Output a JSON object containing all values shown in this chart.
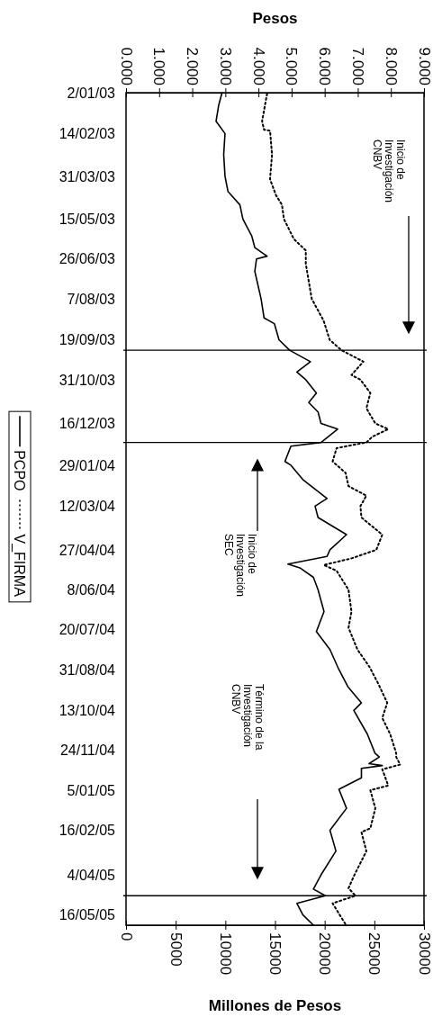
{
  "chart_data": {
    "type": "line",
    "orientation": "horizontal",
    "xlabel": "Millones de Pesos",
    "x2label": "Pesos",
    "ylim": [
      "2005-05-27",
      "2003-01-02"
    ],
    "yticks": [
      {
        "value": "2003-01-02",
        "label": "2/01/03"
      },
      {
        "value": "2003-02-14",
        "label": "14/02/03"
      },
      {
        "value": "2003-03-31",
        "label": "31/03/03"
      },
      {
        "value": "2003-05-15",
        "label": "15/05/03"
      },
      {
        "value": "2003-06-26",
        "label": "26/06/03"
      },
      {
        "value": "2003-08-07",
        "label": "7/08/03"
      },
      {
        "value": "2003-09-19",
        "label": "19/09/03"
      },
      {
        "value": "2003-10-31",
        "label": "31/10/03"
      },
      {
        "value": "2003-12-16",
        "label": "16/12/03"
      },
      {
        "value": "2004-01-29",
        "label": "29/01/04"
      },
      {
        "value": "2004-03-12",
        "label": "12/03/04"
      },
      {
        "value": "2004-04-27",
        "label": "27/04/04"
      },
      {
        "value": "2004-06-08",
        "label": "8/06/04"
      },
      {
        "value": "2004-07-20",
        "label": "20/07/04"
      },
      {
        "value": "2004-08-31",
        "label": "31/08/04"
      },
      {
        "value": "2004-10-13",
        "label": "13/10/04"
      },
      {
        "value": "2004-11-24",
        "label": "24/11/04"
      },
      {
        "value": "2005-01-05",
        "label": "5/01/05"
      },
      {
        "value": "2005-02-16",
        "label": "16/02/05"
      },
      {
        "value": "2005-04-04",
        "label": "4/04/05"
      },
      {
        "value": "2005-05-16",
        "label": "16/05/05"
      }
    ],
    "x2lim": [
      0,
      9
    ],
    "x2ticks": [
      {
        "value": 0,
        "label": "0.000"
      },
      {
        "value": 1,
        "label": "1.000"
      },
      {
        "value": 2,
        "label": "2.000"
      },
      {
        "value": 3,
        "label": "3.000"
      },
      {
        "value": 4,
        "label": "4.000"
      },
      {
        "value": 5,
        "label": "5.000"
      },
      {
        "value": 6,
        "label": "6.000"
      },
      {
        "value": 7,
        "label": "7.000"
      },
      {
        "value": 8,
        "label": "8.000"
      },
      {
        "value": 9,
        "label": "9.000"
      }
    ],
    "xlim": [
      0,
      30000
    ],
    "xticks": [
      0,
      5000,
      10000,
      15000,
      20000,
      25000,
      30000
    ],
    "legend": "left",
    "grid": false,
    "marker": "none",
    "series": [
      {
        "name": "PCPO",
        "color": "#000000",
        "line_style": "solid",
        "axis": "x2",
        "x": [
          "2003-01-02",
          "2003-01-15",
          "2003-02-01",
          "2003-02-14",
          "2003-03-08",
          "2003-03-31",
          "2003-04-16",
          "2003-04-30",
          "2003-05-15",
          "2003-06-02",
          "2003-06-14",
          "2003-06-23",
          "2003-06-26",
          "2003-07-09",
          "2003-08-07",
          "2003-08-27",
          "2003-09-02",
          "2003-09-19",
          "2003-09-30",
          "2003-10-12",
          "2003-10-23",
          "2003-10-31",
          "2003-11-14",
          "2003-11-24",
          "2003-12-04",
          "2003-12-16",
          "2003-12-22",
          "2004-01-05",
          "2004-01-09",
          "2004-01-25",
          "2004-01-29",
          "2004-02-13",
          "2004-03-04",
          "2004-03-12",
          "2004-03-24",
          "2004-04-11",
          "2004-04-27",
          "2004-05-04",
          "2004-05-12",
          "2004-05-16",
          "2004-05-26",
          "2004-06-08",
          "2004-07-01",
          "2004-07-22",
          "2004-08-10",
          "2004-08-31",
          "2004-09-18",
          "2004-10-05",
          "2004-10-13",
          "2004-11-07",
          "2004-11-27",
          "2004-12-01",
          "2004-12-08",
          "2004-12-10",
          "2004-12-13",
          "2004-12-23",
          "2005-01-04",
          "2005-01-24",
          "2005-02-16",
          "2005-03-10",
          "2005-04-04",
          "2005-04-19",
          "2005-04-26",
          "2005-05-04",
          "2005-05-16",
          "2005-05-27"
        ],
        "values": [
          2.9,
          2.8,
          2.72,
          2.99,
          2.95,
          2.99,
          3.08,
          3.44,
          3.53,
          3.8,
          3.89,
          4.26,
          3.94,
          3.89,
          4.08,
          4.17,
          4.48,
          4.62,
          4.94,
          5.57,
          5.16,
          5.43,
          5.75,
          5.52,
          5.8,
          5.89,
          6.39,
          5.89,
          4.98,
          4.8,
          4.98,
          5.34,
          6.07,
          5.71,
          5.8,
          6.66,
          6.16,
          6.07,
          4.89,
          5.25,
          5.66,
          5.8,
          5.98,
          5.75,
          6.16,
          6.43,
          6.7,
          7.11,
          6.88,
          7.29,
          7.52,
          7.65,
          7.34,
          7.74,
          7.11,
          7.11,
          6.43,
          6.66,
          6.16,
          6.34,
          5.89,
          5.66,
          6.02,
          5.16,
          5.34,
          5.66
        ]
      },
      {
        "name": "V_FIRMA",
        "color": "#000000",
        "line_style": "dotted",
        "x": [
          "2003-01-03",
          "2003-02-01",
          "2003-02-10",
          "2003-02-11",
          "2003-03-08",
          "2003-04-03",
          "2003-04-20",
          "2003-04-30",
          "2003-05-15",
          "2003-06-05",
          "2003-06-17",
          "2003-07-01",
          "2003-08-07",
          "2003-08-30",
          "2003-09-19",
          "2003-09-30",
          "2003-10-12",
          "2003-10-26",
          "2003-10-31",
          "2003-11-14",
          "2003-11-30",
          "2003-12-16",
          "2003-12-22",
          "2003-12-30",
          "2004-01-05",
          "2004-01-11",
          "2004-01-25",
          "2004-02-06",
          "2004-02-20",
          "2004-03-01",
          "2004-03-12",
          "2004-03-24",
          "2004-04-11",
          "2004-04-27",
          "2004-05-06",
          "2004-05-13",
          "2004-05-19",
          "2004-06-08",
          "2004-07-01",
          "2004-07-18",
          "2004-08-10",
          "2004-08-28",
          "2004-09-15",
          "2004-10-05",
          "2004-10-21",
          "2004-11-07",
          "2004-11-27",
          "2004-12-01",
          "2004-12-09",
          "2004-12-14",
          "2004-12-31",
          "2005-01-05",
          "2005-01-24",
          "2005-02-14",
          "2005-02-18",
          "2005-03-10",
          "2005-04-04",
          "2005-04-18",
          "2005-04-26",
          "2005-05-04",
          "2005-05-16",
          "2005-05-26"
        ],
        "values": [
          14200,
          13700,
          13900,
          14500,
          14700,
          14500,
          15100,
          15700,
          15900,
          16900,
          18100,
          18100,
          18700,
          19900,
          20500,
          21700,
          23900,
          22700,
          23600,
          24600,
          24200,
          25100,
          26400,
          24800,
          24200,
          21200,
          20800,
          22100,
          22400,
          24200,
          23600,
          23700,
          25800,
          25200,
          22700,
          19900,
          21200,
          22400,
          22700,
          22400,
          23300,
          24500,
          25400,
          26300,
          25800,
          26600,
          27200,
          27200,
          27600,
          25800,
          26400,
          24600,
          25100,
          24600,
          23700,
          24200,
          23000,
          22400,
          23100,
          20800,
          21500,
          22100
        ]
      }
    ],
    "ref_lines": [
      {
        "axis": "y",
        "value": "2003-09-30"
      },
      {
        "axis": "y",
        "value": "2004-01-05"
      },
      {
        "axis": "y",
        "value": "2005-04-26"
      }
    ],
    "annotations": [
      "Inicio de\nInvestigación\nCNBV",
      "Inicio de\nInvestigación\nSEC",
      "Término de la\nInvestigación\nCNBV"
    ]
  }
}
